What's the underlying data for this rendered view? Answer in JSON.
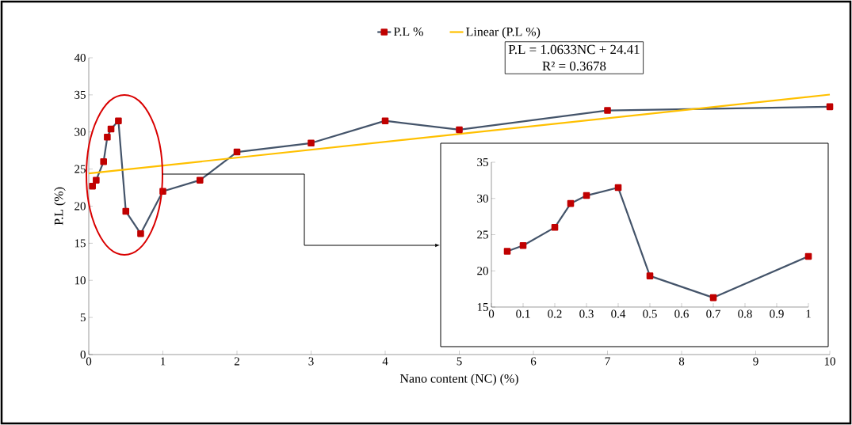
{
  "chart_data": [
    {
      "type": "line",
      "xlabel": "Nano content (NC) (%)",
      "ylabel": "P.L (%)",
      "xlim": [
        0,
        10
      ],
      "ylim": [
        0,
        40
      ],
      "xticks": [
        0,
        1,
        2,
        3,
        4,
        5,
        6,
        7,
        8,
        9,
        10
      ],
      "yticks": [
        0,
        5,
        10,
        15,
        20,
        25,
        30,
        35,
        40
      ],
      "grid": false,
      "legend": "top",
      "annotations": [
        "P.L = 1.0633NC + 24.41",
        "R² = 0.3678"
      ],
      "series": [
        {
          "name": "P.L %",
          "color": "#44546a",
          "marker": "square",
          "line_style": "solid",
          "x": [
            0.05,
            0.1,
            0.2,
            0.25,
            0.3,
            0.4,
            0.5,
            0.7,
            1,
            1.5,
            2,
            3,
            4,
            5,
            7,
            10
          ],
          "values": [
            22.7,
            23.5,
            26,
            29.3,
            30.4,
            31.5,
            19.3,
            16.3,
            22,
            23.5,
            27.3,
            28.5,
            31.5,
            30.3,
            32.9,
            33.4
          ]
        },
        {
          "name": "Linear (P.L %)",
          "type": "line",
          "color": "#ffc000",
          "marker": "none",
          "line_style": "solid",
          "x": [
            0,
            10
          ],
          "values": [
            24.41,
            35.04
          ]
        }
      ]
    },
    {
      "type": "line",
      "xlim": [
        0,
        1
      ],
      "ylim": [
        15,
        35
      ],
      "xticks": [
        0,
        0.1,
        0.2,
        0.3,
        0.4,
        0.5,
        0.6,
        0.7,
        0.8,
        0.9,
        1
      ],
      "yticks": [
        15,
        20,
        25,
        30,
        35
      ],
      "grid": false,
      "legend": false,
      "series": [
        {
          "color": "#44546a",
          "marker": "square",
          "line_style": "solid",
          "x": [
            0.05,
            0.1,
            0.2,
            0.25,
            0.3,
            0.4,
            0.5,
            0.7,
            1
          ],
          "values": [
            22.7,
            23.5,
            26,
            29.3,
            30.4,
            31.5,
            19.3,
            16.3,
            22
          ]
        }
      ]
    }
  ]
}
